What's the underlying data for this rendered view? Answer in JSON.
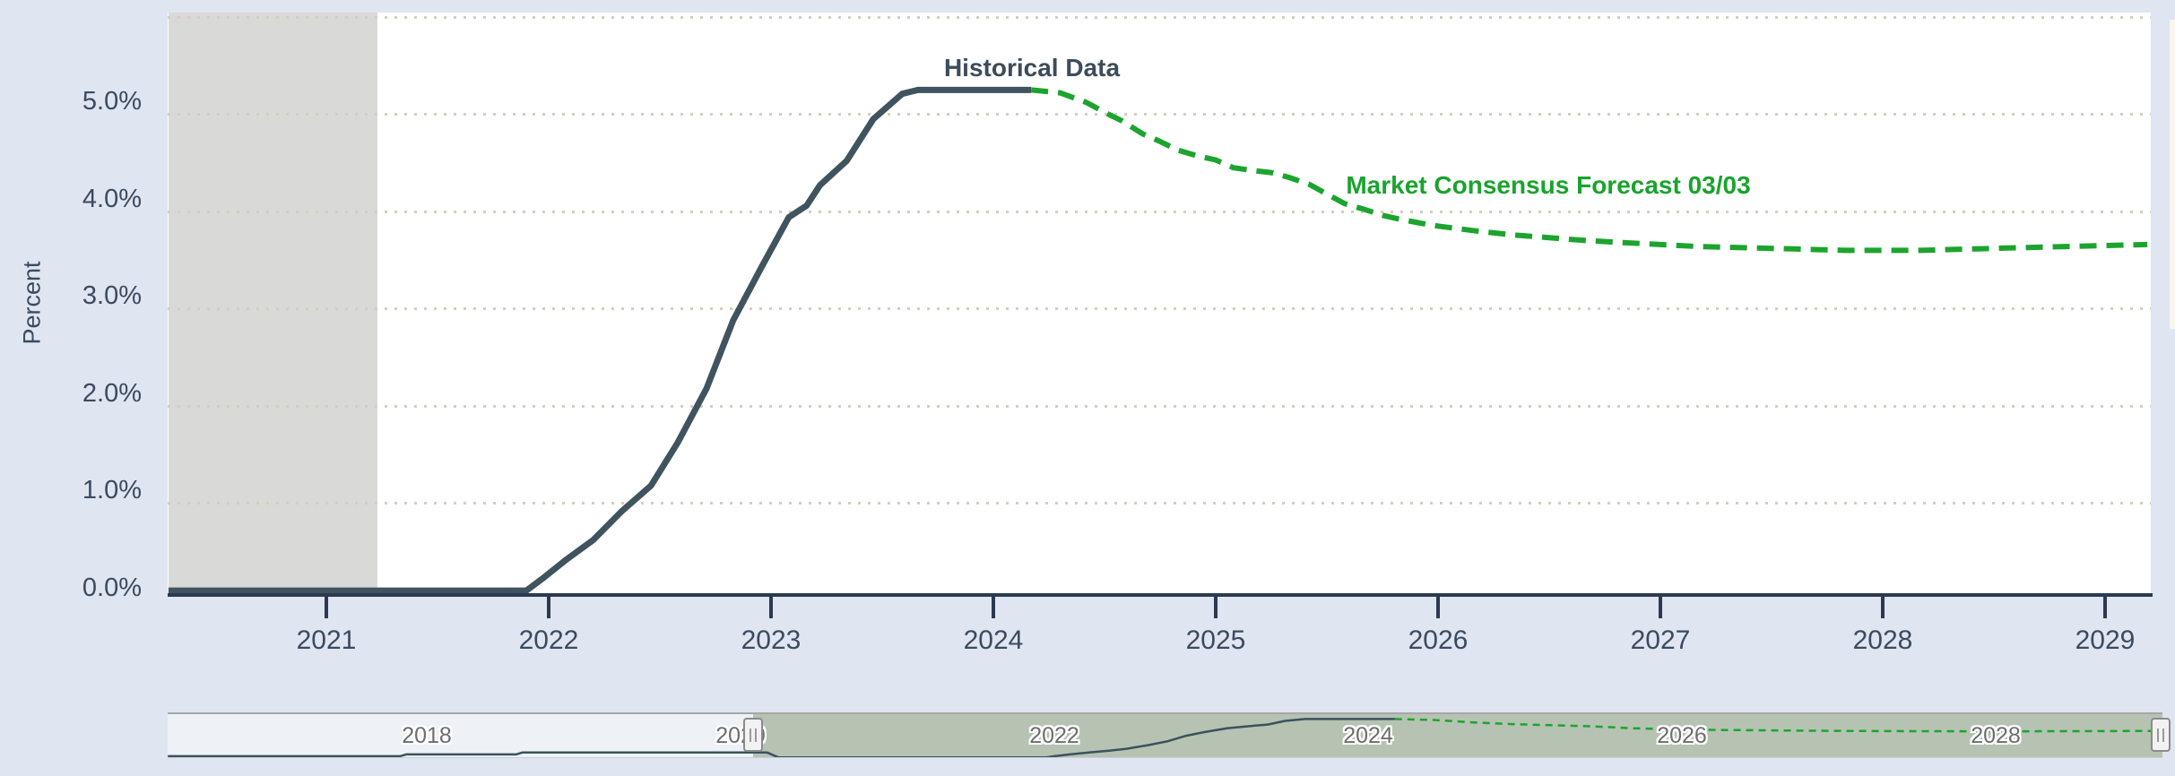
{
  "colors": {
    "page_background": "#dfe6f1",
    "plot_background": "#ffffff",
    "plot_band_gray": "#d9d9d7",
    "gridline": "#d7cdbe",
    "axis": "#2b3a52",
    "axis_label": "#3b4a5f",
    "historical_line": "#40545f",
    "historical_label": "#3d4c5a",
    "forecast_line": "#1ca42e",
    "forecast_label": "#1aa32d",
    "navigator_mask": "rgba(114,139,99,0.45)",
    "navigator_label": "#6d6d6d"
  },
  "y_axis": {
    "title": "Percent",
    "tick_labels": [
      {
        "text": "5.0%",
        "value": 5.0
      },
      {
        "text": "4.0%",
        "value": 4.0
      },
      {
        "text": "3.0%",
        "value": 3.0
      },
      {
        "text": "2.0%",
        "value": 2.0
      },
      {
        "text": "1.0%",
        "value": 1.0
      },
      {
        "text": "0.0%",
        "value": 0.0
      }
    ]
  },
  "x_axis": {
    "ticks": [
      {
        "label": "2021",
        "year": 2021
      },
      {
        "label": "2022",
        "year": 2022
      },
      {
        "label": "2023",
        "year": 2023
      },
      {
        "label": "2024",
        "year": 2024
      },
      {
        "label": "2025",
        "year": 2025
      },
      {
        "label": "2026",
        "year": 2026
      },
      {
        "label": "2027",
        "year": 2027
      },
      {
        "label": "2028",
        "year": 2028
      },
      {
        "label": "2029",
        "year": 2029
      }
    ]
  },
  "annotations": {
    "historical_label": "Historical Data",
    "forecast_label": "Market Consensus Forecast 03/03"
  },
  "chart_data": {
    "type": "line",
    "title": "",
    "xlabel": "",
    "ylabel": "Percent",
    "xlim": [
      2020.29,
      2029.2
    ],
    "ylim": [
      0,
      6.0
    ],
    "grid": "horizontal-dotted",
    "gridline_values": [
      6,
      5,
      4,
      3,
      2,
      1
    ],
    "legend_position": "inline-annotations",
    "plot_bands": [
      {
        "axis": "x",
        "from": 2020.29,
        "to": 2021.23,
        "color": "#d9d9d7"
      }
    ],
    "series": [
      {
        "name": "Historical Data",
        "style": "solid",
        "color": "#40545f",
        "points": [
          [
            2020.29,
            0.1
          ],
          [
            2021.9,
            0.1
          ],
          [
            2021.97,
            0.22
          ],
          [
            2022.08,
            0.42
          ],
          [
            2022.2,
            0.62
          ],
          [
            2022.33,
            0.92
          ],
          [
            2022.46,
            1.18
          ],
          [
            2022.58,
            1.62
          ],
          [
            2022.71,
            2.18
          ],
          [
            2022.83,
            2.88
          ],
          [
            2022.96,
            3.44
          ],
          [
            2023.08,
            3.94
          ],
          [
            2023.16,
            4.06
          ],
          [
            2023.22,
            4.27
          ],
          [
            2023.34,
            4.52
          ],
          [
            2023.46,
            4.95
          ],
          [
            2023.59,
            5.21
          ],
          [
            2023.66,
            5.25
          ],
          [
            2024.17,
            5.25
          ]
        ]
      },
      {
        "name": "Market Consensus Forecast 03/03",
        "style": "dashed",
        "color": "#1ca42e",
        "points": [
          [
            2024.17,
            5.25
          ],
          [
            2024.3,
            5.22
          ],
          [
            2024.42,
            5.12
          ],
          [
            2024.5,
            5.02
          ],
          [
            2024.58,
            4.93
          ],
          [
            2024.67,
            4.8
          ],
          [
            2024.75,
            4.72
          ],
          [
            2024.83,
            4.63
          ],
          [
            2024.92,
            4.57
          ],
          [
            2025.0,
            4.53
          ],
          [
            2025.08,
            4.45
          ],
          [
            2025.17,
            4.42
          ],
          [
            2025.25,
            4.4
          ],
          [
            2025.33,
            4.35
          ],
          [
            2025.42,
            4.28
          ],
          [
            2025.5,
            4.18
          ],
          [
            2025.58,
            4.08
          ],
          [
            2025.67,
            4.02
          ],
          [
            2025.75,
            3.96
          ],
          [
            2025.83,
            3.92
          ],
          [
            2025.92,
            3.88
          ],
          [
            2026.0,
            3.85
          ],
          [
            2026.17,
            3.8
          ],
          [
            2026.33,
            3.76
          ],
          [
            2026.5,
            3.73
          ],
          [
            2026.67,
            3.7
          ],
          [
            2026.83,
            3.68
          ],
          [
            2027.0,
            3.66
          ],
          [
            2027.17,
            3.64
          ],
          [
            2027.33,
            3.63
          ],
          [
            2027.5,
            3.62
          ],
          [
            2027.67,
            3.61
          ],
          [
            2027.83,
            3.6
          ],
          [
            2028.0,
            3.6
          ],
          [
            2028.17,
            3.6
          ],
          [
            2028.33,
            3.61
          ],
          [
            2028.5,
            3.62
          ],
          [
            2028.67,
            3.63
          ],
          [
            2028.83,
            3.64
          ],
          [
            2029.0,
            3.65
          ],
          [
            2029.19,
            3.66
          ]
        ]
      }
    ]
  },
  "navigator": {
    "xlim": [
      2016.35,
      2029.05
    ],
    "selected_from": 2020.08,
    "selected_to": 2029.05,
    "x_labels": [
      {
        "label": "2018",
        "year": 2018
      },
      {
        "label": "2020",
        "year": 2020
      },
      {
        "label": "2022",
        "year": 2022
      },
      {
        "label": "2024",
        "year": 2024
      },
      {
        "label": "2026",
        "year": 2026
      },
      {
        "label": "2028",
        "year": 2028
      }
    ],
    "series": [
      {
        "name": "Historical Data",
        "style": "solid",
        "color": "#3a525e",
        "points": [
          [
            2016.35,
            0.25
          ],
          [
            2017.83,
            0.25
          ],
          [
            2017.87,
            0.5
          ],
          [
            2018.57,
            0.5
          ],
          [
            2018.61,
            0.75
          ],
          [
            2020.17,
            0.75
          ],
          [
            2020.24,
            0.1
          ],
          [
            2021.95,
            0.1
          ],
          [
            2022.0,
            0.25
          ],
          [
            2022.1,
            0.5
          ],
          [
            2022.22,
            0.75
          ],
          [
            2022.35,
            1.0
          ],
          [
            2022.46,
            1.25
          ],
          [
            2022.6,
            1.75
          ],
          [
            2022.72,
            2.25
          ],
          [
            2022.84,
            3.0
          ],
          [
            2022.96,
            3.5
          ],
          [
            2023.1,
            4.0
          ],
          [
            2023.22,
            4.25
          ],
          [
            2023.36,
            4.5
          ],
          [
            2023.47,
            5.0
          ],
          [
            2023.6,
            5.25
          ],
          [
            2024.17,
            5.25
          ]
        ]
      },
      {
        "name": "Market Consensus Forecast 03/03",
        "style": "dashed",
        "color": "#1ca42e",
        "points": [
          [
            2024.17,
            5.25
          ],
          [
            2024.42,
            5.12
          ],
          [
            2024.67,
            4.8
          ],
          [
            2024.92,
            4.57
          ],
          [
            2025.17,
            4.42
          ],
          [
            2025.42,
            4.28
          ],
          [
            2025.67,
            4.02
          ],
          [
            2025.92,
            3.88
          ],
          [
            2026.17,
            3.8
          ],
          [
            2026.5,
            3.73
          ],
          [
            2026.83,
            3.68
          ],
          [
            2027.17,
            3.64
          ],
          [
            2027.5,
            3.62
          ],
          [
            2027.83,
            3.6
          ],
          [
            2028.17,
            3.6
          ],
          [
            2028.5,
            3.62
          ],
          [
            2028.83,
            3.64
          ],
          [
            2029.05,
            3.65
          ]
        ]
      }
    ]
  }
}
